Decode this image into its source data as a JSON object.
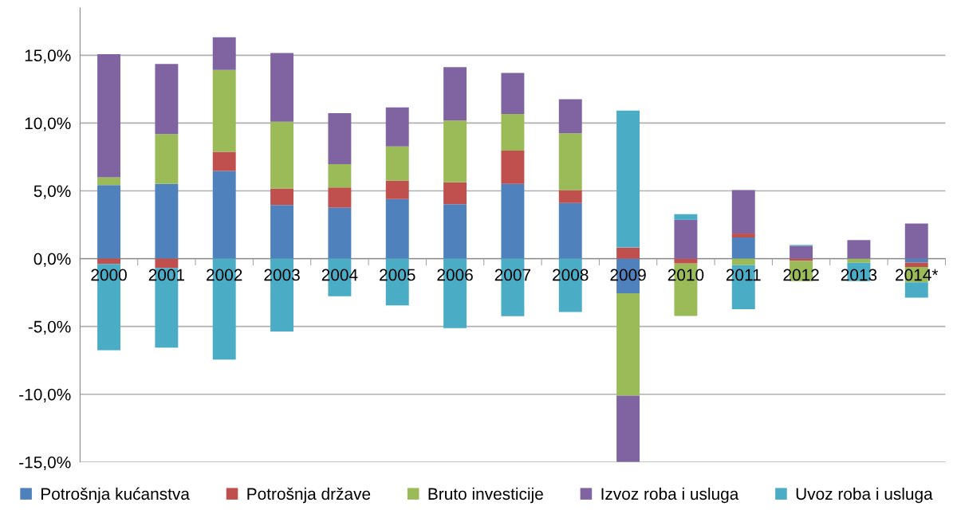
{
  "chart_data": {
    "type": "bar",
    "stacked": true,
    "categories": [
      "2000",
      "2001",
      "2002",
      "2003",
      "2004",
      "2005",
      "2006",
      "2007",
      "2008",
      "2009",
      "2010",
      "2011",
      "2012",
      "2013",
      "2014*"
    ],
    "series": [
      {
        "name": "Potrošnja kućanstva",
        "color": "#4f81bd",
        "values": [
          5.43,
          5.51,
          6.47,
          3.96,
          3.76,
          4.39,
          4.02,
          5.51,
          4.1,
          -2.55,
          0,
          1.56,
          0,
          0,
          -0.29
        ]
      },
      {
        "name": "Potrošnja države",
        "color": "#c0504d",
        "values": [
          -0.39,
          -0.69,
          1.41,
          1.22,
          1.49,
          1.36,
          1.61,
          2.45,
          0.96,
          0.82,
          -0.36,
          0.29,
          -0.17,
          null,
          -0.32
        ]
      },
      {
        "name": "Bruto investicije",
        "color": "#9bbb59",
        "values": [
          0.57,
          3.67,
          6.04,
          4.92,
          1.71,
          2.52,
          4.55,
          2.71,
          4.19,
          -7.55,
          -3.87,
          -0.48,
          -1.49,
          -0.3,
          -1.14
        ]
      },
      {
        "name": "Izvoz roba i usluga",
        "color": "#8064a2",
        "values": [
          9.08,
          5.17,
          2.41,
          5.06,
          3.77,
          2.89,
          3.94,
          3.02,
          2.51,
          -4.9,
          2.86,
          3.2,
          0.95,
          1.37,
          2.59
        ]
      },
      {
        "name": "Uvoz roba i usluga",
        "color": "#4bacc6",
        "values": [
          -6.37,
          -5.88,
          -7.45,
          -5.37,
          -2.78,
          -3.45,
          -5.12,
          -4.25,
          -3.94,
          10.1,
          0.42,
          -3.25,
          0.06,
          -1.35,
          -1.13
        ]
      }
    ],
    "ylim": [
      -15,
      18.5
    ],
    "yticks": [
      {
        "value": -15,
        "label": "-15,0%"
      },
      {
        "value": -10,
        "label": "-10,0%"
      },
      {
        "value": -5,
        "label": "-5,0%"
      },
      {
        "value": 0,
        "label": "0,0%"
      },
      {
        "value": 5,
        "label": "5,0%"
      },
      {
        "value": 10,
        "label": "10,0%"
      },
      {
        "value": 15,
        "label": "15,0%"
      }
    ],
    "grid": "y",
    "legend": "bottom"
  }
}
